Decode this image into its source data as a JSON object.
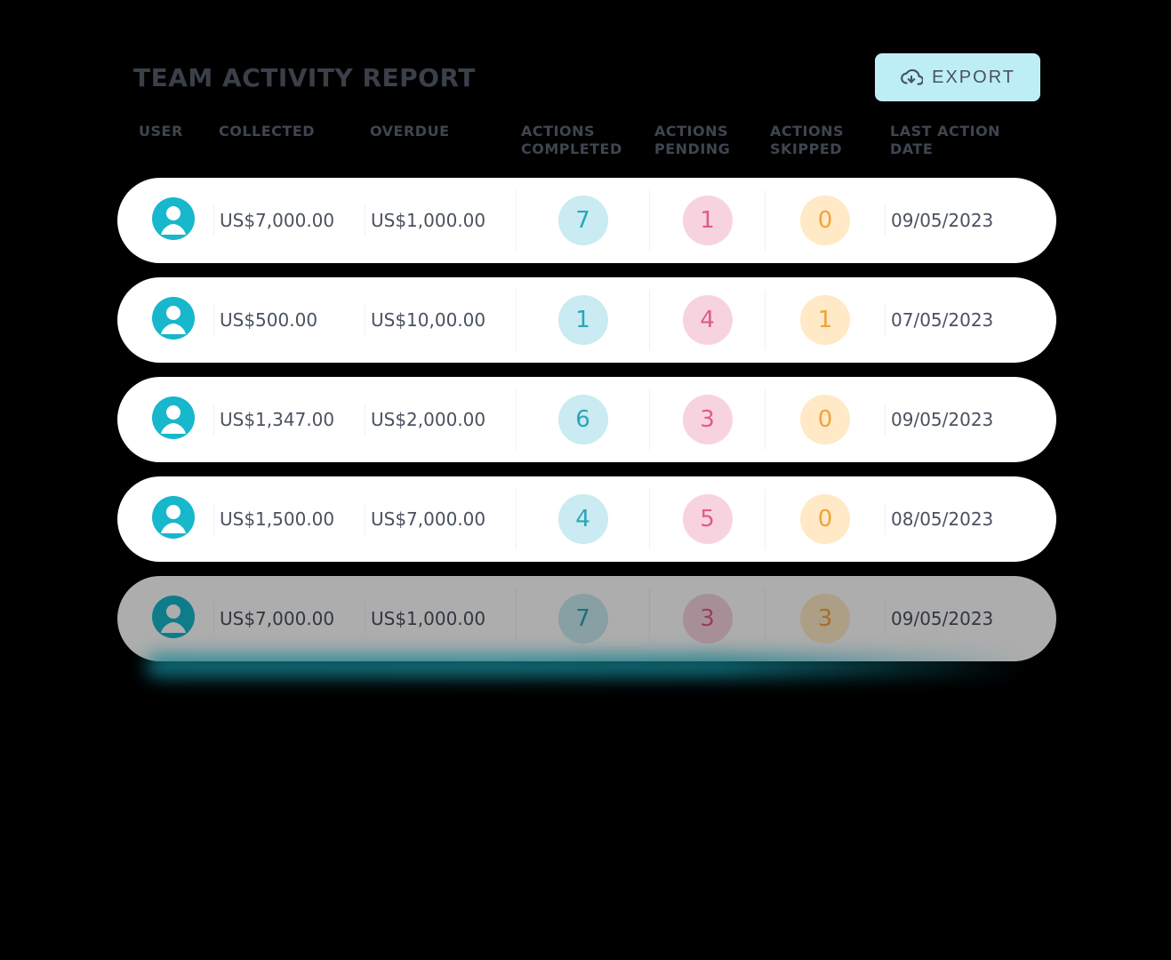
{
  "page": {
    "title": "TEAM ACTIVITY REPORT",
    "export_label": "EXPORT",
    "background_color": "#000000",
    "card_background": "#ffffff",
    "text_color": "#3f4550"
  },
  "export_button": {
    "bg": "#bdeef5",
    "text_color": "#4a525e"
  },
  "columns": {
    "user": "USER",
    "collected": "COLLECTED",
    "overdue": "OVERDUE",
    "actions_completed_1": "ACTIONS",
    "actions_completed_2": "COMPLETED",
    "actions_pending_1": "ACTIONS",
    "actions_pending_2": "PENDING",
    "actions_skipped_1": "ACTIONS",
    "actions_skipped_2": "SKIPPED",
    "last_action_1": "LAST ACTION",
    "last_action_2": "DATE",
    "header_fontsize": 16
  },
  "avatar": {
    "color": "#17b7cc"
  },
  "pill_styles": {
    "completed": {
      "bg": "#c9ebf1",
      "text": "#2aa5bb"
    },
    "pending": {
      "bg": "#f7d3e0",
      "text": "#e15a8b"
    },
    "skipped": {
      "bg": "#ffe9c6",
      "text": "#f0a43c"
    }
  },
  "row_shadow_gradient": [
    "#1ec3d6",
    "#23c7da",
    "#1cbace"
  ],
  "cell_divider_color": "#eef1f4",
  "rows": [
    {
      "collected": "US$7,000.00",
      "overdue": "US$1,000.00",
      "completed": "7",
      "pending": "1",
      "skipped": "0",
      "last_action": "09/05/2023",
      "faded": false
    },
    {
      "collected": "US$500.00",
      "overdue": "US$10,00.00",
      "completed": "1",
      "pending": "4",
      "skipped": "1",
      "last_action": "07/05/2023",
      "faded": false
    },
    {
      "collected": "US$1,347.00",
      "overdue": "US$2,000.00",
      "completed": "6",
      "pending": "3",
      "skipped": "0",
      "last_action": "09/05/2023",
      "faded": false
    },
    {
      "collected": "US$1,500.00",
      "overdue": "US$7,000.00",
      "completed": "4",
      "pending": "5",
      "skipped": "0",
      "last_action": "08/05/2023",
      "faded": false
    },
    {
      "collected": "US$7,000.00",
      "overdue": "US$1,000.00",
      "completed": "7",
      "pending": "3",
      "skipped": "3",
      "last_action": "09/05/2023",
      "faded": true
    }
  ]
}
